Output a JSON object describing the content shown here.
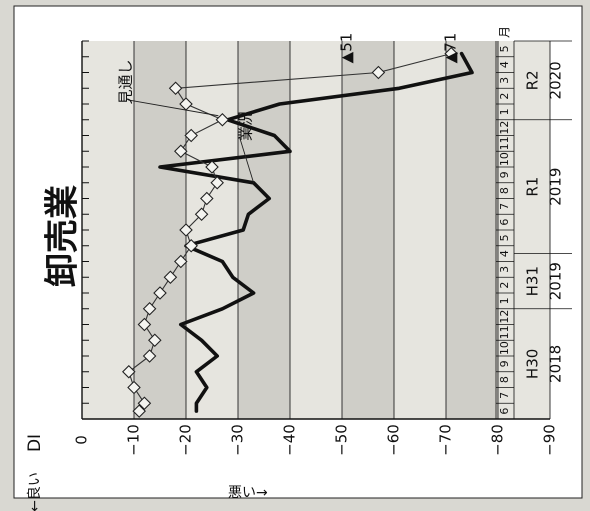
{
  "chart_data": {
    "type": "line",
    "title": "卸売業",
    "ylabel": "DI",
    "direction_labels": {
      "good": "良い",
      "bad": "悪い"
    },
    "ylim": [
      -90,
      0
    ],
    "yticks": [
      0,
      -10,
      -20,
      -30,
      -40,
      -50,
      -60,
      -70,
      -80,
      -90
    ],
    "ytick_labels": [
      "0",
      "−10",
      "−20",
      "−30",
      "−40",
      "−50",
      "−60",
      "−70",
      "−80",
      "−90"
    ],
    "x_months": [
      "6",
      "7",
      "8",
      "9",
      "10",
      "11",
      "12",
      "1",
      "2",
      "3",
      "4",
      "5",
      "6",
      "7",
      "8",
      "9",
      "10",
      "11",
      "12",
      "1",
      "2",
      "3",
      "4",
      "5"
    ],
    "x_month_unit": "月",
    "x_years": [
      {
        "era": "H30",
        "year": "2018",
        "start": 0,
        "end": 7
      },
      {
        "era": "H31",
        "year": "2019",
        "start": 7,
        "end": 10.5
      },
      {
        "era": "R1",
        "year": "2019",
        "start": 10.5,
        "end": 19
      },
      {
        "era": "R2",
        "year": "2020",
        "start": 19,
        "end": 24
      }
    ],
    "series": [
      {
        "name": "業況",
        "style": "thick",
        "x": [
          0.5,
          1,
          2,
          3,
          4,
          5,
          6,
          7,
          8,
          9,
          10,
          11,
          12,
          13,
          14,
          15,
          16,
          17,
          18,
          19,
          20,
          21,
          22,
          23.2
        ],
        "values": [
          -22,
          -22,
          -24,
          -22,
          -26,
          -23,
          -19,
          -27,
          -33,
          -29,
          -27,
          -20,
          -31,
          -32,
          -36,
          -33,
          -15,
          -40,
          -37,
          -28,
          -38,
          -61,
          -75,
          -73
        ]
      },
      {
        "name": "見通し",
        "style": "diamond",
        "x": [
          0.5,
          1,
          2,
          3,
          4,
          5,
          6,
          7,
          8,
          9,
          10,
          11,
          12,
          13,
          14,
          15,
          16,
          17,
          18,
          19,
          20,
          21,
          22,
          23.2
        ],
        "values": [
          -11,
          -12,
          -10,
          -9,
          -13,
          -14,
          -12,
          -13,
          -15,
          -17,
          -19,
          -21,
          -20,
          -23,
          -24,
          -26,
          -25,
          -19,
          -21,
          -27,
          -20,
          -18,
          -57,
          -71
        ]
      }
    ],
    "annotations": [
      {
        "text": "▲51",
        "value": -51
      },
      {
        "text": "▲71",
        "value": -71
      }
    ],
    "grid": true,
    "legend": "inline labels"
  }
}
